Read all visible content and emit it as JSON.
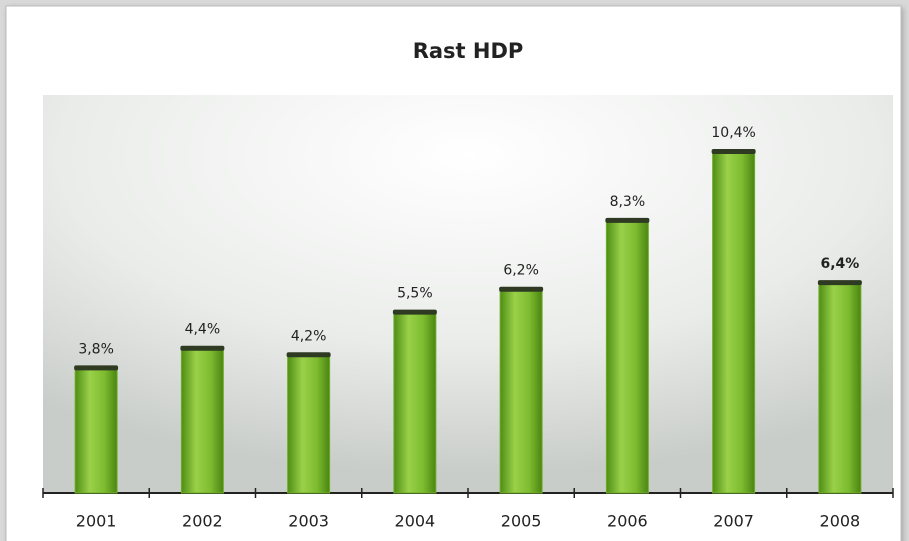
{
  "chart_data": {
    "type": "bar",
    "title": "Rast HDP",
    "categories": [
      "2001",
      "2002",
      "2003",
      "2004",
      "2005",
      "2006",
      "2007",
      "2008"
    ],
    "values": [
      3.8,
      4.4,
      4.2,
      5.5,
      6.2,
      8.3,
      10.4,
      6.4
    ],
    "value_labels": [
      "3,8%",
      "4,4%",
      "4,2%",
      "5,5%",
      "6,2%",
      "8,3%",
      "10,4%",
      "6,4%"
    ],
    "color": "#6fae2a"
  }
}
